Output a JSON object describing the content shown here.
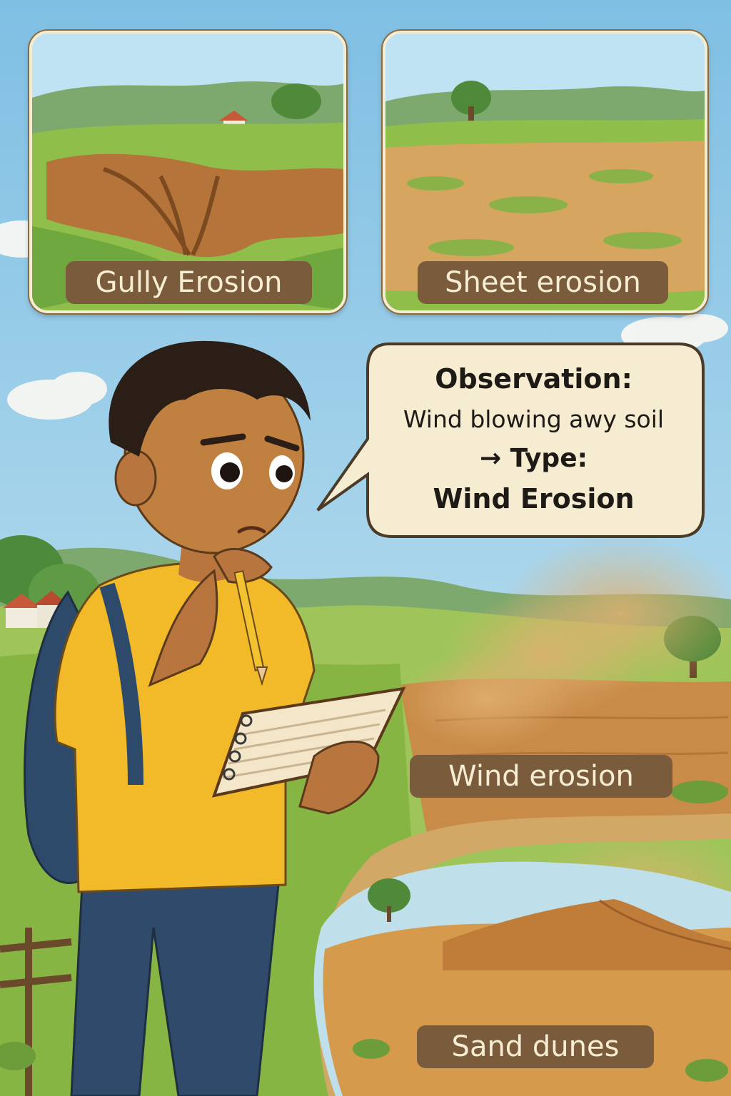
{
  "panels": {
    "gully": {
      "label": "Gully Erosion"
    },
    "sheet": {
      "label": "Sheet erosion"
    }
  },
  "scene_labels": {
    "wind": "Wind erosion",
    "dunes": "Sand dunes"
  },
  "speech_bubble": {
    "title": "Observation:",
    "detail": "Wind blowing awy soil",
    "type_line": "→ Type:",
    "result": "Wind Erosion"
  },
  "colors": {
    "sky": "#8ec7e6",
    "grass": "#8fbf4a",
    "soil": "#b4743a",
    "label_bg": "#7a5c3c",
    "label_text": "#f7edd3",
    "shirt": "#f2b928"
  }
}
